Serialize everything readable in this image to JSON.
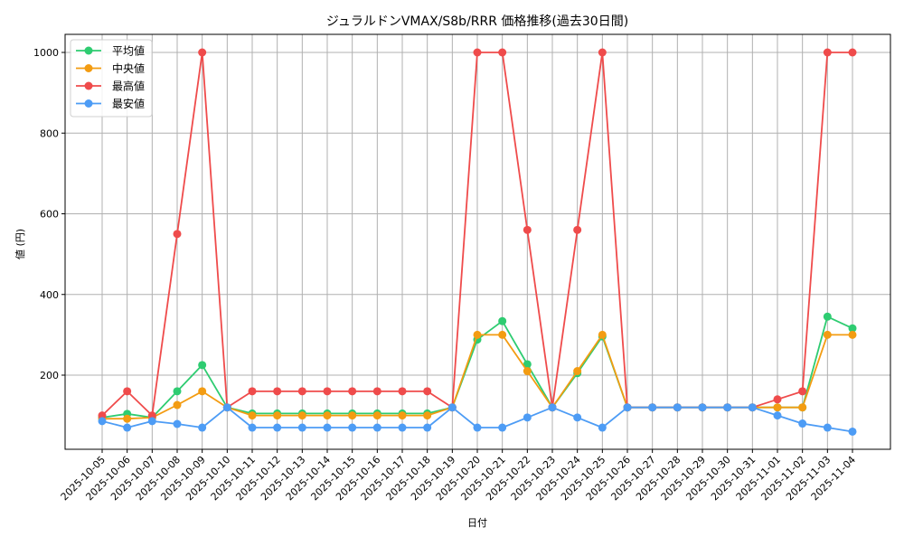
{
  "chart_data": {
    "type": "line",
    "title": "ジュラルドンVMAX/S8b/RRR 価格推移(過去30日間)",
    "xlabel": "日付",
    "ylabel": "値 (円)",
    "ylim": [
      0,
      1045
    ],
    "yticks": [
      200,
      400,
      600,
      800,
      1000
    ],
    "grid": true,
    "legend_position": "upper left",
    "x": [
      "2025-10-05",
      "2025-10-06",
      "2025-10-07",
      "2025-10-08",
      "2025-10-09",
      "2025-10-10",
      "2025-10-11",
      "2025-10-12",
      "2025-10-13",
      "2025-10-14",
      "2025-10-15",
      "2025-10-16",
      "2025-10-17",
      "2025-10-18",
      "2025-10-19",
      "2025-10-20",
      "2025-10-21",
      "2025-10-22",
      "2025-10-23",
      "2025-10-24",
      "2025-10-25",
      "2025-10-26",
      "2025-10-27",
      "2025-10-28",
      "2025-10-29",
      "2025-10-30",
      "2025-10-31",
      "2025-11-01",
      "2025-11-02",
      "2025-11-03",
      "2025-11-04"
    ],
    "series": [
      {
        "name": "平均値",
        "color": "#2ecc71",
        "values": [
          95,
          104,
          95,
          160,
          225,
          120,
          105,
          105,
          105,
          105,
          105,
          105,
          105,
          105,
          120,
          288,
          334,
          227,
          120,
          205,
          296,
          120,
          120,
          120,
          120,
          120,
          120,
          120,
          120,
          345,
          316
        ]
      },
      {
        "name": "中央値",
        "color": "#f39c12",
        "values": [
          92,
          92,
          95,
          126,
          160,
          120,
          100,
          100,
          100,
          100,
          100,
          100,
          100,
          100,
          120,
          300,
          300,
          210,
          120,
          210,
          300,
          120,
          120,
          120,
          120,
          120,
          120,
          120,
          120,
          300,
          300
        ]
      },
      {
        "name": "最高値",
        "color": "#ef4b4b",
        "values": [
          100,
          160,
          100,
          550,
          1000,
          120,
          160,
          160,
          160,
          160,
          160,
          160,
          160,
          160,
          120,
          1000,
          1000,
          560,
          120,
          560,
          1000,
          120,
          120,
          120,
          120,
          120,
          120,
          140,
          160,
          1000,
          1000
        ]
      },
      {
        "name": "最安値",
        "color": "#4d9cf5",
        "values": [
          86,
          70,
          86,
          79,
          70,
          120,
          70,
          70,
          70,
          70,
          70,
          70,
          70,
          70,
          120,
          70,
          70,
          95,
          120,
          95,
          70,
          120,
          120,
          120,
          120,
          120,
          120,
          100,
          80,
          70,
          60
        ]
      }
    ]
  }
}
